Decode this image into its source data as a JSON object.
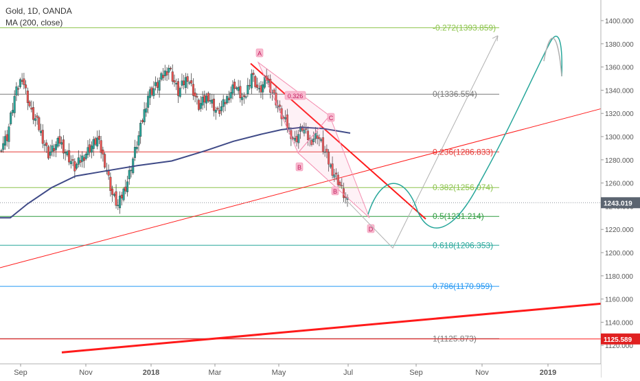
{
  "header": {
    "symbol_line": "Gold, 1D, OANDA",
    "indicator_line": "MA (200, close)"
  },
  "price_axis": {
    "ticks": [
      "1400.000",
      "1380.000",
      "1360.000",
      "1340.000",
      "1320.000",
      "1300.000",
      "1280.000",
      "1260.000",
      "1240.000",
      "1220.000",
      "1200.000",
      "1180.000",
      "1160.000",
      "1140.000",
      "1120.000"
    ],
    "tick_values": [
      1400,
      1380,
      1360,
      1340,
      1320,
      1300,
      1280,
      1260,
      1240,
      1220,
      1200,
      1180,
      1160,
      1140,
      1120
    ],
    "current_price": {
      "label": "1243.019",
      "value": 1243.019,
      "color": "#5b6470"
    },
    "lower_tag": {
      "label": "1125.589",
      "value": 1125.589,
      "color": "#e02020"
    }
  },
  "time_axis": {
    "labels": [
      "Sep",
      "Nov",
      "2018",
      "Mar",
      "May",
      "Jul",
      "Sep",
      "Nov",
      "2019"
    ],
    "bold": [
      "2018",
      "2019"
    ]
  },
  "fib_levels": [
    {
      "label": "-0.272(1393.859)",
      "value": 1393.859,
      "color": "#8bc34a"
    },
    {
      "label": "0(1336.554)",
      "value": 1336.554,
      "color": "#787878"
    },
    {
      "label": "0.236(1286.833)",
      "value": 1286.833,
      "color": "#e53935"
    },
    {
      "label": "0.382(1256.074)",
      "value": 1256.074,
      "color": "#8bc34a"
    },
    {
      "label": "0.5(1231.214)",
      "value": 1231.214,
      "color": "#2e9c3f"
    },
    {
      "label": "0.618(1206.353)",
      "value": 1206.353,
      "color": "#26a69a"
    },
    {
      "label": "0.786(1170.959)",
      "value": 1170.959,
      "color": "#2196f3"
    },
    {
      "label": "1(1125.873)",
      "value": 1125.873,
      "color": "#787878"
    }
  ],
  "pattern_points": {
    "A": "A",
    "B": "B",
    "C": "C",
    "D": "D",
    "B2": "B",
    "ratio": "0.326"
  },
  "colors": {
    "bull": "#26a69a",
    "bear": "#ef5350",
    "ma": "#3f4a87",
    "trend_red": "#ff1a1a",
    "projection_green": "#26a69a",
    "projection_grey": "#b0b0b0",
    "pattern": "#f48fb1"
  }
}
